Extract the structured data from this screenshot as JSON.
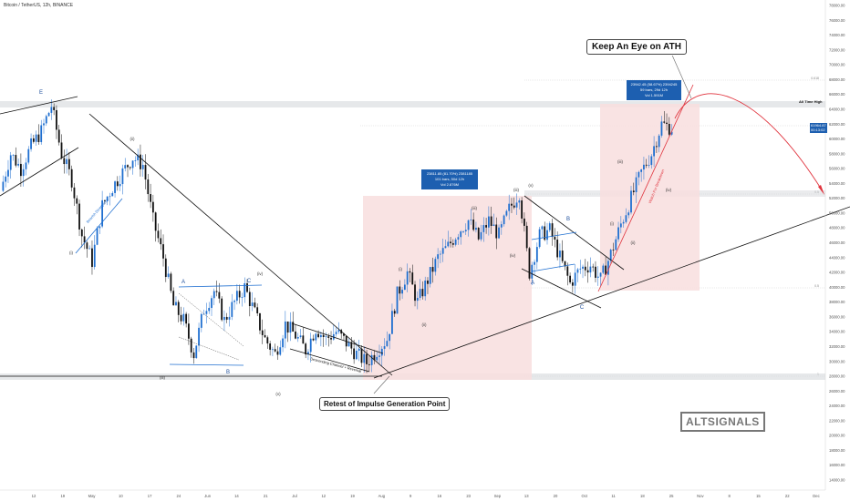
{
  "header": {
    "symbol": "Bitcoin / TetherUS, 12h, BINANCE"
  },
  "callouts": {
    "ath": "Keep An Eye on ATH",
    "retest": "Retest of Impulse Generation Point"
  },
  "watermark": "ALTSIGNALS",
  "stat_boxes": [
    [
      "23811.85 (81.70%) 2381185",
      "101 bars, 50d 12h",
      "Vol 2.876M"
    ],
    [
      "23942.45 (58.67%) 2394245",
      "59 bars, 29d 12h",
      "Vol 1.591M"
    ]
  ],
  "price_tag": [
    "61964.87",
    "00:13:02"
  ],
  "levels": {
    "ath_label": "All Time High"
  },
  "chart_data": {
    "type": "line",
    "title": "Bitcoin / TetherUS, 12h, BINANCE",
    "ylim": [
      12000,
      78000
    ],
    "y_ticks": [
      78000,
      76000,
      74000,
      72000,
      70000,
      68000,
      66000,
      64000,
      62000,
      60000,
      58000,
      56000,
      54000,
      52000,
      50000,
      48000,
      46000,
      44000,
      42000,
      40000,
      38000,
      36000,
      34000,
      32000,
      30000,
      28000,
      26000,
      24000,
      22000,
      20000,
      18000,
      16000,
      14000
    ],
    "x_ticks": [
      "12",
      "19",
      "May",
      "10",
      "17",
      "24",
      "Jun",
      "14",
      "21",
      "Jul",
      "12",
      "19",
      "Aug",
      "9",
      "16",
      "23",
      "Sep",
      "13",
      "20",
      "Oct",
      "11",
      "18",
      "25",
      "Nov",
      "8",
      "15",
      "22",
      "Dec"
    ],
    "series": [
      {
        "values": [
          53000,
          58000,
          56000,
          59000,
          61000,
          64500,
          58000,
          54500,
          47000,
          43500,
          51000,
          53500,
          55500,
          57500,
          56500,
          49000,
          44000,
          37500,
          35500,
          31000,
          37000,
          39500,
          35500,
          38000,
          40000,
          36500,
          33000,
          31000,
          35000,
          33500,
          31500,
          34500,
          33000,
          34000,
          32500,
          31000,
          29800,
          31500,
          33000,
          39000,
          42000,
          38000,
          41000,
          44000,
          45500,
          47500,
          49000,
          46500,
          49000,
          47000,
          50500,
          52800,
          42000,
          47000,
          47700,
          44000,
          40500,
          42500,
          43000,
          41000,
          44500,
          48500,
          52000,
          55500,
          58000,
          62000,
          61500
        ]
      }
    ],
    "wave_labels": [
      "E",
      "(ii)",
      "(i)",
      "(iii)",
      "A",
      "B",
      "C",
      "(iv)",
      "(v)",
      "(i)",
      "(ii)",
      "(iii)",
      "(iv)",
      "(v)",
      "A",
      "B",
      "C",
      "(i)",
      "(ii)",
      "(iii)",
      "(iv)",
      "(iii)"
    ],
    "pattern_labels": [
      "Bearish Divergence",
      "Descending Channel + Reversal",
      "Watch For Breakdown"
    ],
    "fib_labels": [
      "0.618",
      "0.5",
      "0.5",
      "1"
    ]
  }
}
